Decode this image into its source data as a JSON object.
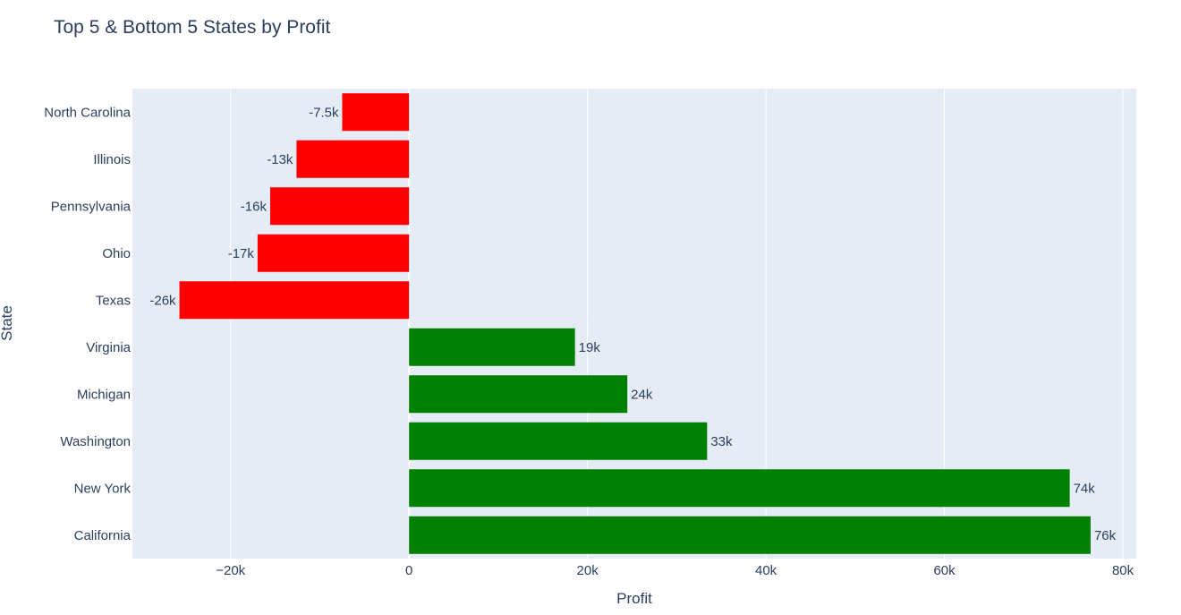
{
  "chart_data": {
    "type": "bar",
    "orientation": "horizontal",
    "title": "Top 5 & Bottom 5 States by Profit",
    "xlabel": "Profit",
    "ylabel": "State",
    "xlim": [
      -31000,
      81500
    ],
    "x_ticks": [
      -20000,
      0,
      20000,
      40000,
      60000,
      80000
    ],
    "x_tick_labels": [
      "−20k",
      "0",
      "20k",
      "40k",
      "60k",
      "80k"
    ],
    "grid": true,
    "plot_background": "#e5ecf6",
    "categories": [
      "North Carolina",
      "Illinois",
      "Pennsylvania",
      "Ohio",
      "Texas",
      "Virginia",
      "Michigan",
      "Washington",
      "New York",
      "California"
    ],
    "values": [
      -7490,
      -12608,
      -15560,
      -16971,
      -25729,
      18598,
      24463,
      33403,
      74039,
      76381
    ],
    "data_labels": [
      "-7.5k",
      "-13k",
      "-16k",
      "-17k",
      "-26k",
      "19k",
      "24k",
      "33k",
      "74k",
      "76k"
    ],
    "positive_color": "#008000",
    "negative_color": "#ff0000"
  }
}
